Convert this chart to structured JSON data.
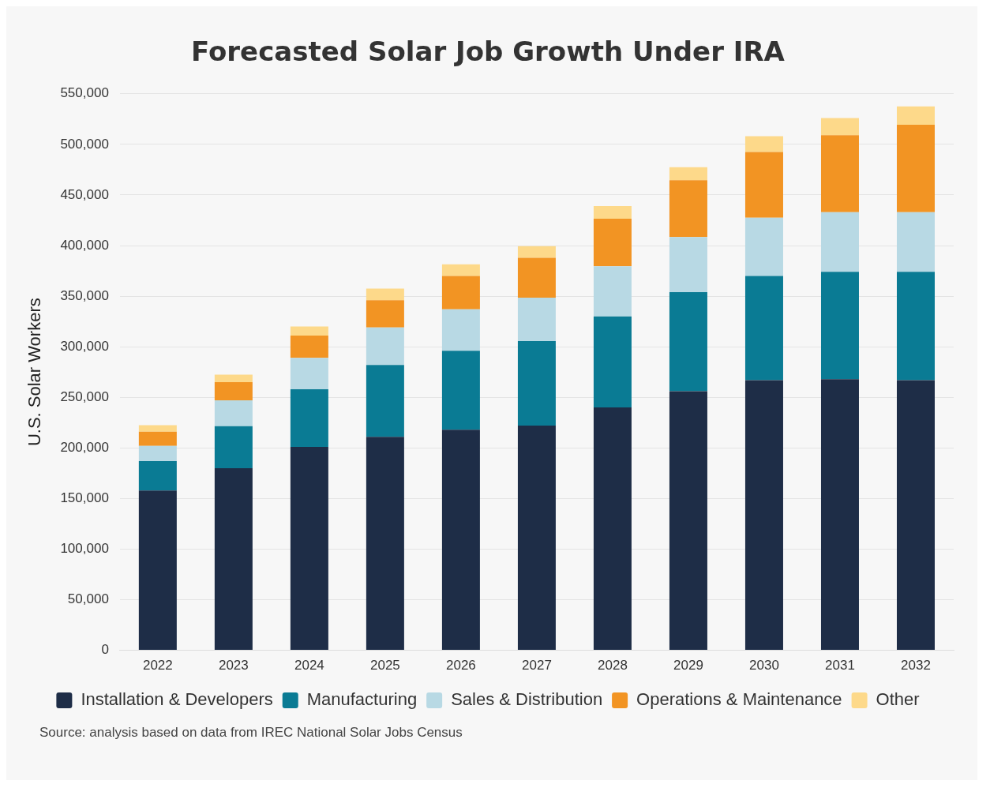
{
  "chart_data": {
    "type": "bar",
    "title": "Forecasted Solar Job Growth Under IRA",
    "ylabel": "U.S. Solar Workers",
    "categories": [
      "2022",
      "2023",
      "2024",
      "2025",
      "2026",
      "2027",
      "2028",
      "2029",
      "2030",
      "2031",
      "2032"
    ],
    "stacked": true,
    "series": [
      {
        "name": "Installation & Developers",
        "color": "#1e2d47",
        "values": [
          158000,
          180000,
          201000,
          211000,
          218000,
          222000,
          240000,
          256000,
          267000,
          268000,
          267000
        ]
      },
      {
        "name": "Manufacturing",
        "color": "#0a7b94",
        "values": [
          29000,
          41500,
          57000,
          71000,
          78000,
          83500,
          90000,
          98000,
          103000,
          106000,
          107000
        ]
      },
      {
        "name": "Sales & Distribution",
        "color": "#b8d9e4",
        "values": [
          15000,
          25500,
          31000,
          37000,
          41000,
          43000,
          49500,
          54500,
          57500,
          59000,
          59000
        ]
      },
      {
        "name": "Operations & Maintenance",
        "color": "#f29423",
        "values": [
          14000,
          18000,
          22000,
          27000,
          33000,
          39500,
          47000,
          56000,
          65000,
          76000,
          86500
        ]
      },
      {
        "name": "Other",
        "color": "#fdd98a",
        "values": [
          6500,
          7500,
          9000,
          11500,
          11500,
          11500,
          12500,
          13000,
          15500,
          17000,
          18000
        ]
      }
    ],
    "ylim": [
      0,
      550000
    ],
    "yticks": [
      0,
      {
        "value": 50000,
        "label": "50,000"
      },
      {
        "value": 100000,
        "label": "100,000"
      },
      {
        "value": 150000,
        "label": "150,000"
      },
      {
        "value": 200000,
        "label": "200,000"
      },
      {
        "value": 250000,
        "label": "250,000"
      },
      {
        "value": 300000,
        "label": "300,000"
      },
      {
        "value": 350000,
        "label": "350,000"
      },
      {
        "value": 400000,
        "label": "400,000"
      },
      {
        "value": 450000,
        "label": "450,000"
      },
      {
        "value": 500000,
        "label": "500,000"
      },
      {
        "value": 550000,
        "label": "550,000"
      }
    ],
    "grid": "y",
    "legend": "bottom",
    "annotations": [
      "Source: analysis based on data from IREC National Solar Jobs Census"
    ]
  }
}
